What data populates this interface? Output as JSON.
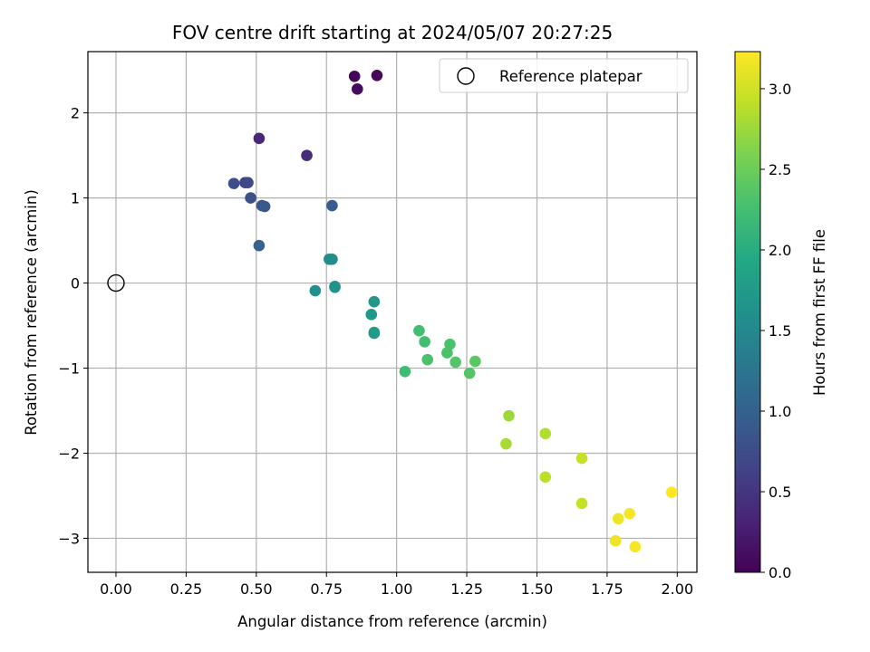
{
  "chart_data": {
    "type": "scatter",
    "title": "FOV centre drift starting at 2024/05/07 20:27:25",
    "xlabel": "Angular distance from reference (arcmin)",
    "ylabel": "Rotation from reference (arcmin)",
    "xlim": [
      -0.1,
      2.07
    ],
    "ylim": [
      -3.4,
      2.72
    ],
    "xticks": [
      "0.00",
      "0.25",
      "0.50",
      "0.75",
      "1.00",
      "1.25",
      "1.50",
      "1.75",
      "2.00"
    ],
    "yticks": [
      "−3",
      "−2",
      "−1",
      "0",
      "1",
      "2"
    ],
    "grid": true,
    "legend": {
      "placement": "top-right",
      "entries": [
        "Reference platepar"
      ]
    },
    "reference": {
      "x": 0.0,
      "y": 0.0,
      "label": "Reference platepar"
    },
    "colorbar": {
      "label": "Hours from first FF file",
      "colormap": "viridis",
      "range": [
        0.0,
        3.23
      ],
      "ticks": [
        "0.0",
        "0.5",
        "1.0",
        "1.5",
        "2.0",
        "2.5",
        "3.0"
      ]
    },
    "series": [
      {
        "points": [
          {
            "x": 0.85,
            "y": 2.43,
            "c": 0.05
          },
          {
            "x": 0.93,
            "y": 2.44,
            "c": 0.05
          },
          {
            "x": 0.86,
            "y": 2.28,
            "c": 0.1
          },
          {
            "x": 0.51,
            "y": 1.7,
            "c": 0.35
          },
          {
            "x": 0.68,
            "y": 1.5,
            "c": 0.4
          },
          {
            "x": 0.42,
            "y": 1.17,
            "c": 0.75
          },
          {
            "x": 0.46,
            "y": 1.18,
            "c": 0.65
          },
          {
            "x": 0.47,
            "y": 1.18,
            "c": 0.7
          },
          {
            "x": 0.48,
            "y": 1.0,
            "c": 0.8
          },
          {
            "x": 0.52,
            "y": 0.91,
            "c": 0.85
          },
          {
            "x": 0.53,
            "y": 0.9,
            "c": 0.9
          },
          {
            "x": 0.77,
            "y": 0.91,
            "c": 0.95
          },
          {
            "x": 0.51,
            "y": 0.44,
            "c": 1.0
          },
          {
            "x": 0.76,
            "y": 0.28,
            "c": 1.55
          },
          {
            "x": 0.77,
            "y": 0.28,
            "c": 1.55
          },
          {
            "x": 0.71,
            "y": -0.09,
            "c": 1.6
          },
          {
            "x": 0.78,
            "y": -0.04,
            "c": 1.65
          },
          {
            "x": 0.78,
            "y": -0.05,
            "c": 1.65
          },
          {
            "x": 0.92,
            "y": -0.22,
            "c": 1.7
          },
          {
            "x": 0.91,
            "y": -0.37,
            "c": 1.7
          },
          {
            "x": 0.92,
            "y": -0.59,
            "c": 1.75
          },
          {
            "x": 0.92,
            "y": -0.58,
            "c": 1.75
          },
          {
            "x": 1.03,
            "y": -1.04,
            "c": 2.2
          },
          {
            "x": 1.08,
            "y": -0.56,
            "c": 2.25
          },
          {
            "x": 1.1,
            "y": -0.69,
            "c": 2.25
          },
          {
            "x": 1.11,
            "y": -0.9,
            "c": 2.3
          },
          {
            "x": 1.18,
            "y": -0.82,
            "c": 2.3
          },
          {
            "x": 1.19,
            "y": -0.72,
            "c": 2.3
          },
          {
            "x": 1.21,
            "y": -0.93,
            "c": 2.35
          },
          {
            "x": 1.26,
            "y": -1.06,
            "c": 2.35
          },
          {
            "x": 1.28,
            "y": -0.92,
            "c": 2.4
          },
          {
            "x": 1.4,
            "y": -1.56,
            "c": 2.75
          },
          {
            "x": 1.39,
            "y": -1.89,
            "c": 2.8
          },
          {
            "x": 1.53,
            "y": -1.77,
            "c": 2.85
          },
          {
            "x": 1.53,
            "y": -2.28,
            "c": 2.9
          },
          {
            "x": 1.66,
            "y": -2.06,
            "c": 2.95
          },
          {
            "x": 1.66,
            "y": -2.59,
            "c": 2.95
          },
          {
            "x": 1.79,
            "y": -2.77,
            "c": 3.15
          },
          {
            "x": 1.78,
            "y": -3.03,
            "c": 3.15
          },
          {
            "x": 1.83,
            "y": -2.71,
            "c": 3.2
          },
          {
            "x": 1.85,
            "y": -3.1,
            "c": 3.2
          },
          {
            "x": 1.98,
            "y": -2.46,
            "c": 3.23
          }
        ]
      }
    ]
  }
}
